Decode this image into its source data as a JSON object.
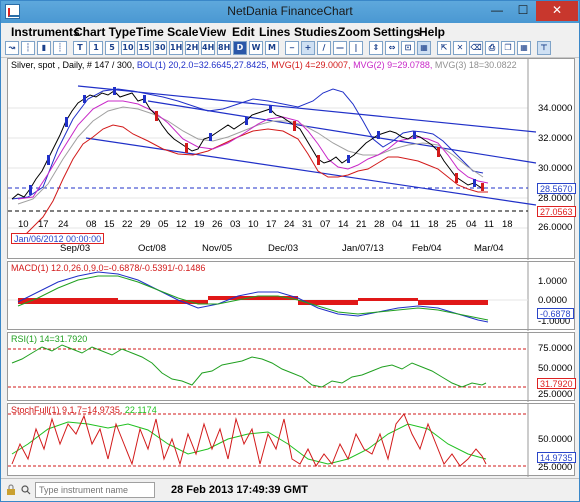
{
  "window": {
    "title": "NetDania FinanceChart"
  },
  "menu": [
    "Instruments",
    "Chart Type",
    "Time Scale",
    "View",
    "Edit",
    "Lines",
    "Studies",
    "Zoom",
    "Settings",
    "Help"
  ],
  "toolbar": {
    "buttons": [
      "T",
      "1",
      "5",
      "10",
      "15",
      "30",
      "1H",
      "2H",
      "4H",
      "8H",
      "D",
      "W",
      "M"
    ]
  },
  "price_panel": {
    "header_instrument": "Silver, spot , Daily, # 147 / 300, ",
    "header_bol": "BOL(1) 20,2.0=32.6645,27.8425, ",
    "header_mvg1": "MVG(1) 4=29.0007, ",
    "header_mvg2": "MVG(2) 9=29.0788, ",
    "header_mvg3": "MVG(3) 18=30.0822",
    "y_ticks": [
      "34.0000",
      "32.0000",
      "30.0000",
      "28.0000",
      "26.0000"
    ],
    "last_price": "28.5670",
    "support_price": "27.0563",
    "cursor_date": "Jan/06/2012 00:00:00"
  },
  "x_axis": {
    "days": [
      "10",
      "17",
      "24",
      "08",
      "15",
      "22",
      "29",
      "05",
      "12",
      "19",
      "26",
      "03",
      "10",
      "17",
      "24",
      "31",
      "07",
      "14",
      "21",
      "28",
      "04",
      "11",
      "18",
      "25",
      "04",
      "11",
      "18"
    ],
    "months": [
      "Sep/03",
      "Oct/08",
      "Nov/05",
      "Dec/03",
      "Jan/07/13",
      "Feb/04",
      "Mar/04"
    ]
  },
  "macd_panel": {
    "header": "MACD(1) 12.0,26.0,9.0=-0.6878/-0.5391/-0.1486",
    "y_ticks": [
      "1.0000",
      "0.0000",
      "-1.0000"
    ],
    "last_value": "-0.6878"
  },
  "rsi_panel": {
    "header": "RSI(1) 14=31.7920",
    "y_ticks": [
      "75.0000",
      "50.0000",
      "25.0000"
    ],
    "last_value": "31.7920"
  },
  "stoch_panel": {
    "header_k": "StochFull(1) 9,1,7=14.9735, ",
    "header_d": "22.1174",
    "y_ticks": [
      "50.0000",
      "25.0000"
    ],
    "last_value": "14.9735"
  },
  "status": {
    "instrument_placeholder": "Type instrument name",
    "timestamp": "28 Feb 2013 17:49:39 GMT"
  },
  "colors": {
    "bollinger": "#2030c8",
    "mvg1": "#d21a1a",
    "mvg2": "#c828c8",
    "mvg3": "#a0a0a0",
    "rsi": "#20a020",
    "stoch_k": "#d21a1a",
    "stoch_d": "#20c020"
  }
}
